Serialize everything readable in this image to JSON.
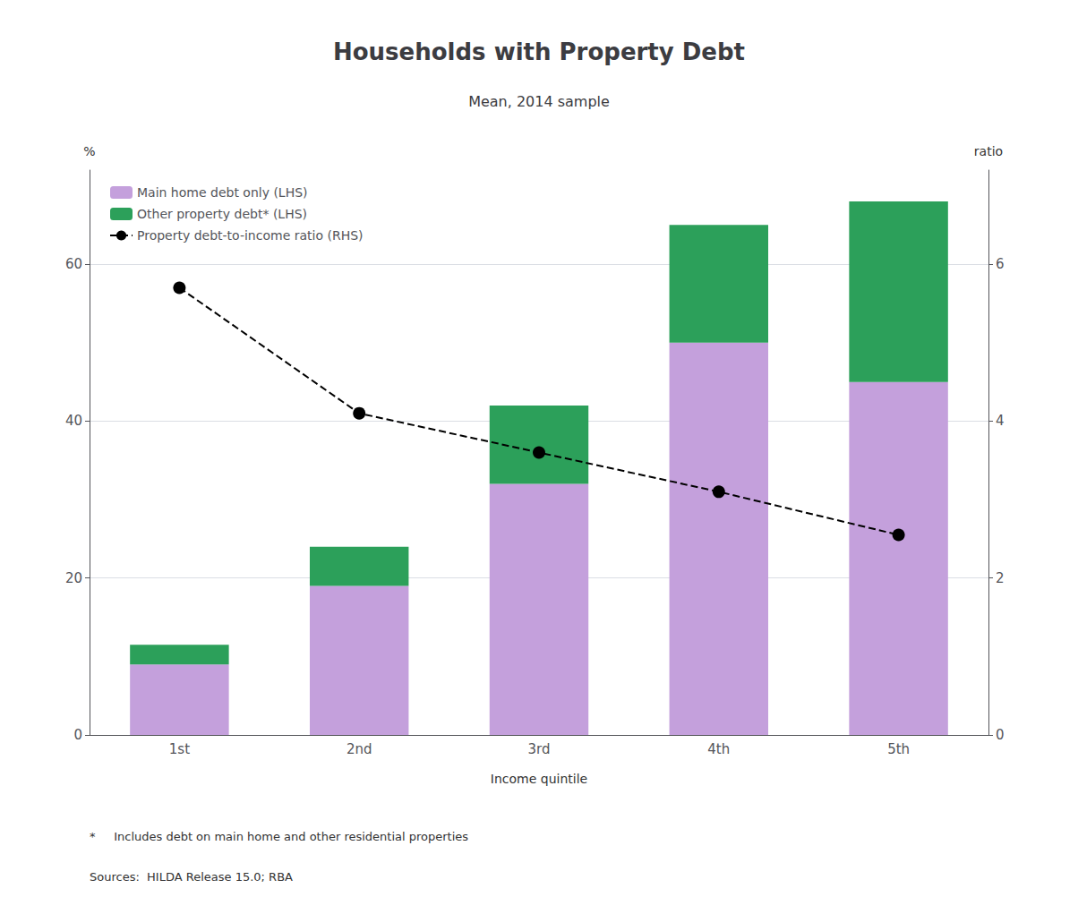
{
  "chart_data": {
    "type": "bar",
    "title": "Households with Property Debt",
    "subtitle": "Mean, 2014 sample",
    "xlabel": "Income quintile",
    "ylabel": "%",
    "y2label": "ratio",
    "categories": [
      "1st",
      "2nd",
      "3rd",
      "4th",
      "5th"
    ],
    "stacked": true,
    "series": [
      {
        "name": "Main home debt only (LHS)",
        "color": "#c4a0dc",
        "values": [
          9.0,
          19.0,
          32.0,
          50.0,
          45.0
        ]
      },
      {
        "name": "Other property debt* (LHS)",
        "color": "#2ca05a",
        "values": [
          2.5,
          5.0,
          10.0,
          15.0,
          23.0
        ]
      },
      {
        "name": "Property debt-to-income ratio (RHS)",
        "type": "line",
        "axis": "y2",
        "color": "#000000",
        "line_style": "dashed",
        "marker": "circle",
        "values": [
          5.7,
          4.1,
          3.6,
          3.1,
          2.55
        ]
      }
    ],
    "ylim": [
      0,
      72
    ],
    "yticks": [
      0,
      20,
      40,
      60
    ],
    "y2lim": [
      0,
      7.2
    ],
    "y2ticks": [
      0,
      2,
      4,
      6
    ],
    "grid": true,
    "legend": "upper left",
    "annotations": [
      "*     Includes debt on main home and other residential properties",
      "Sources:  HILDA Release 15.0; RBA"
    ]
  }
}
